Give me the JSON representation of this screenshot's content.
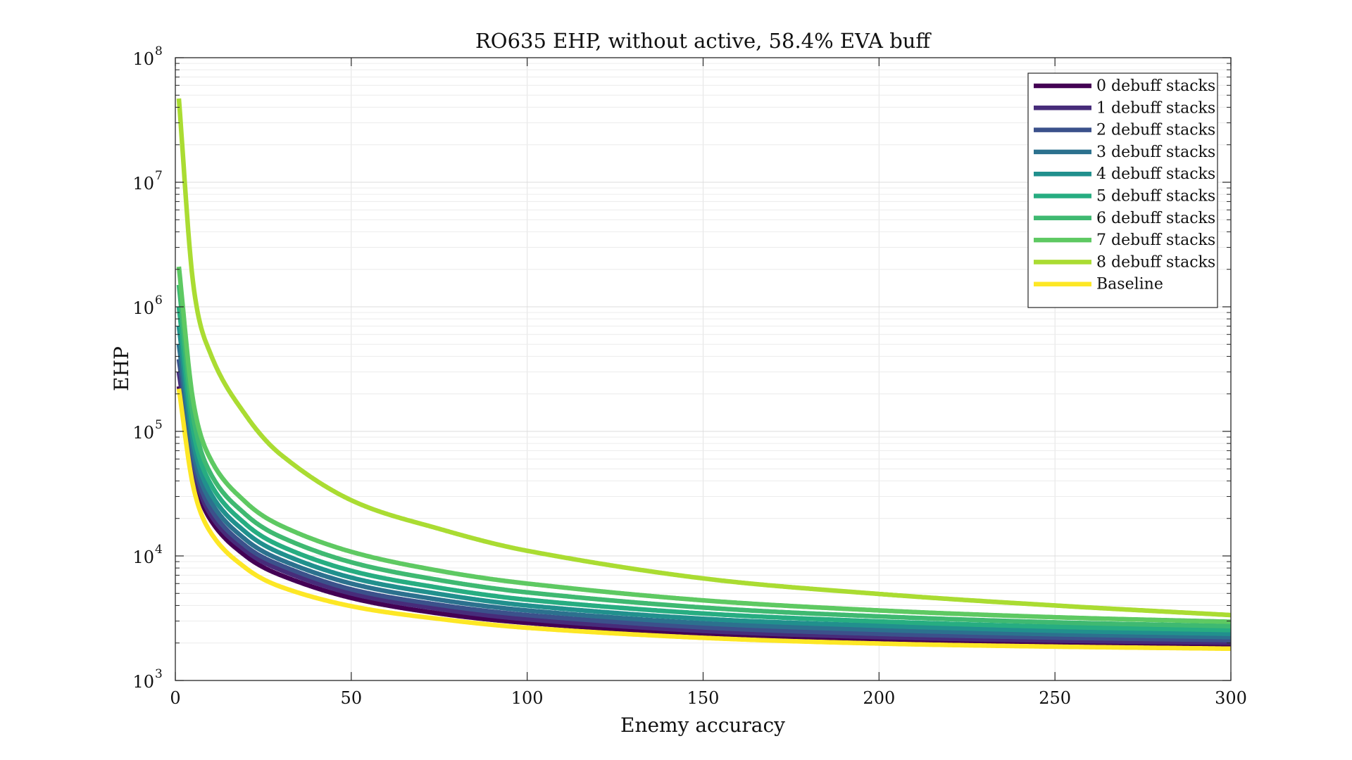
{
  "chart_data": {
    "type": "line",
    "title": "RO635 EHP, without active, 58.4% EVA buff",
    "xlabel": "Enemy accuracy",
    "ylabel": "EHP",
    "xlim": [
      0,
      300
    ],
    "ylim": [
      1000,
      100000000
    ],
    "yscale": "log",
    "x_ticks": [
      "0",
      "50",
      "100",
      "150",
      "200",
      "250",
      "300"
    ],
    "y_ticks": [
      {
        "base": "10",
        "exp": "3"
      },
      {
        "base": "10",
        "exp": "4"
      },
      {
        "base": "10",
        "exp": "5"
      },
      {
        "base": "10",
        "exp": "6"
      },
      {
        "base": "10",
        "exp": "7"
      },
      {
        "base": "10",
        "exp": "8"
      }
    ],
    "grid": true,
    "legend_position": "top-right",
    "x_sample": [
      1,
      5,
      10,
      20,
      30,
      50,
      75,
      100,
      150,
      200,
      250,
      300
    ],
    "series": [
      {
        "name": "0 debuff stacks",
        "color": "#440154",
        "values": [
          230000,
          46000,
          19500,
          10000,
          7000,
          4600,
          3450,
          2900,
          2350,
          2120,
          2000,
          1930
        ]
      },
      {
        "name": "1 debuff stacks",
        "color": "#472c7a",
        "values": [
          300000,
          52000,
          21500,
          11000,
          7700,
          5000,
          3750,
          3100,
          2500,
          2230,
          2090,
          2010
        ]
      },
      {
        "name": "2 debuff stacks",
        "color": "#3b518b",
        "values": [
          380000,
          60000,
          24000,
          12000,
          8400,
          5400,
          4050,
          3350,
          2670,
          2370,
          2210,
          2110
        ]
      },
      {
        "name": "3 debuff stacks",
        "color": "#2c718e",
        "values": [
          500000,
          70000,
          27500,
          13500,
          9300,
          6000,
          4450,
          3650,
          2880,
          2550,
          2350,
          2230
        ]
      },
      {
        "name": "4 debuff stacks",
        "color": "#21908d",
        "values": [
          700000,
          85000,
          32000,
          15500,
          10500,
          6700,
          4950,
          4000,
          3130,
          2750,
          2510,
          2370
        ]
      },
      {
        "name": "5 debuff stacks",
        "color": "#27ad81",
        "values": [
          1000000,
          105000,
          38000,
          18000,
          12000,
          7600,
          5550,
          4450,
          3450,
          2980,
          2700,
          2540
        ]
      },
      {
        "name": "6 debuff stacks",
        "color": "#3fb971",
        "values": [
          1500000,
          135000,
          46000,
          21500,
          14200,
          8900,
          6400,
          5100,
          3850,
          3270,
          2930,
          2730
        ]
      },
      {
        "name": "7 debuff stacks",
        "color": "#5ec962",
        "values": [
          2100000,
          180000,
          60000,
          27000,
          17500,
          10800,
          7600,
          6000,
          4400,
          3650,
          3220,
          2960
        ]
      },
      {
        "name": "8 debuff stacks",
        "color": "#aadc32",
        "values": [
          47000000,
          1600000,
          420000,
          135000,
          65000,
          28000,
          16500,
          11000,
          6600,
          4950,
          4000,
          3350
        ]
      },
      {
        "name": "Baseline",
        "color": "#fde725",
        "values": [
          220000,
          37000,
          15500,
          8000,
          5650,
          3950,
          3120,
          2650,
          2200,
          1980,
          1870,
          1800
        ]
      }
    ]
  }
}
